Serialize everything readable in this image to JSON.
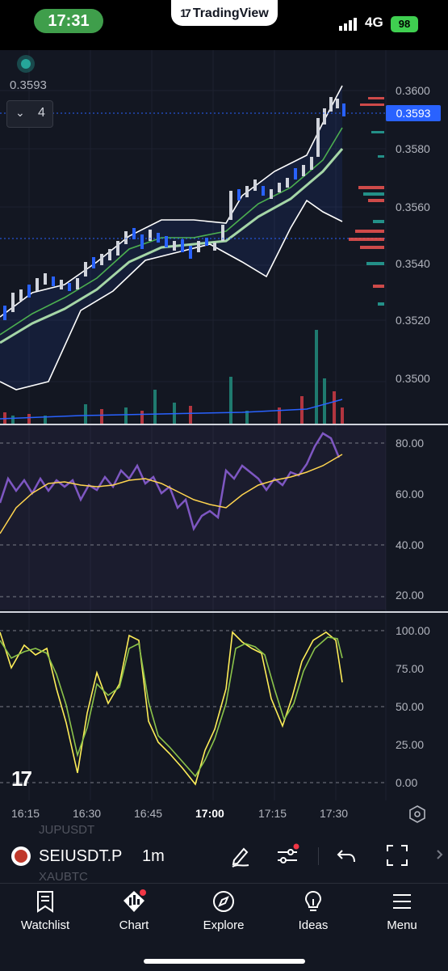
{
  "status_bar": {
    "time": "17:31",
    "app_badge": "TradingView",
    "network": "4G",
    "battery": "98"
  },
  "chart": {
    "top_price": "0.3593",
    "indicator_count": "4",
    "current_price": "0.3593",
    "price_labels": [
      "0.3600",
      "0.3580",
      "0.3560",
      "0.3540",
      "0.3520",
      "0.3500"
    ],
    "rsi_labels": [
      "80.00",
      "60.00",
      "40.00",
      "20.00"
    ],
    "stoch_labels": [
      "100.00",
      "75.00",
      "50.00",
      "25.00",
      "0.00"
    ],
    "time_labels": [
      "16:15",
      "16:30",
      "16:45",
      "17:00",
      "17:15",
      "17:30"
    ],
    "colors": {
      "up": "#d1d4dc",
      "down": "#2962ff",
      "bb": "#ffffff",
      "ma_fast": "#4caf50",
      "ma_slow": "#a5d6a7",
      "rsi": "#7e57c2",
      "rsi_ma": "#ffd54f",
      "stoch_k": "#ffee58",
      "stoch_d": "#8bc34a"
    }
  },
  "toolbar": {
    "symbol": "SEIUSDT.P",
    "interval": "1m",
    "ghost_above": "JUPUSDT",
    "ghost_below": "XAUBTC"
  },
  "nav": {
    "watchlist": "Watchlist",
    "chart": "Chart",
    "explore": "Explore",
    "ideas": "Ideas",
    "menu": "Menu"
  }
}
